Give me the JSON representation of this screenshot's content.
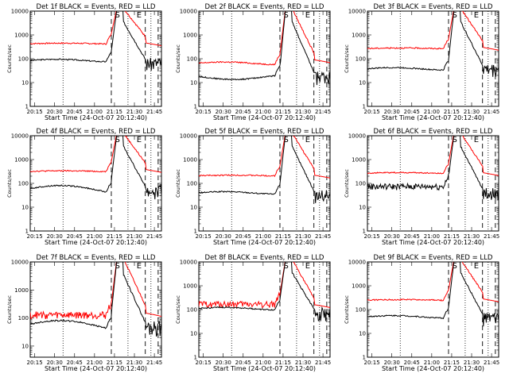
{
  "chart_data": [
    {
      "type": "line",
      "title": "Det 1f BLACK = Events, RED = LLD",
      "xlabel": "Start Time (24-Oct-07 20:12:40)",
      "ylabel": "Counts/sec",
      "x_ticks": [
        "20:15",
        "20:30",
        "20:45",
        "21:00",
        "21:15",
        "21:30",
        "21:45"
      ],
      "y_ticks": [
        "1",
        "10",
        "100",
        "1000",
        "10000"
      ],
      "ylim": [
        1,
        10000
      ],
      "y_scale": "log",
      "markers": [
        "S",
        "E"
      ],
      "series": [
        {
          "name": "Events",
          "color": "#000000",
          "base": 85,
          "spike_peak": 12000,
          "post_level": 90,
          "wobble": "mild"
        },
        {
          "name": "LLD",
          "color": "#ff0000",
          "base": 430,
          "spike_peak": 13000,
          "post_level": 460,
          "wobble": "smooth"
        }
      ]
    },
    {
      "type": "line",
      "title": "Det 2f BLACK = Events, RED = LLD",
      "xlabel": "Start Time (24-Oct-07 20:12:40)",
      "ylabel": "Counts/sec",
      "x_ticks": [
        "20:15",
        "20:30",
        "20:45",
        "21:00",
        "21:15",
        "21:30",
        "21:45"
      ],
      "y_ticks": [
        "1",
        "10",
        "100",
        "1000",
        "10000"
      ],
      "ylim": [
        1,
        10000
      ],
      "y_scale": "log",
      "markers": [
        "S",
        "E"
      ],
      "series": [
        {
          "name": "Events",
          "color": "#000000",
          "base": 18,
          "spike_peak": 12000,
          "post_level": 25,
          "wobble": "dip"
        },
        {
          "name": "LLD",
          "color": "#ff0000",
          "base": 65,
          "spike_peak": 13000,
          "post_level": 90,
          "wobble": "mild"
        }
      ]
    },
    {
      "type": "line",
      "title": "Det 3f BLACK = Events, RED = LLD",
      "xlabel": "Start Time (24-Oct-07 20:12:40)",
      "ylabel": "Counts/sec",
      "x_ticks": [
        "20:15",
        "20:30",
        "20:45",
        "21:00",
        "21:15",
        "21:30",
        "21:45"
      ],
      "y_ticks": [
        "1",
        "10",
        "100",
        "1000",
        "10000"
      ],
      "ylim": [
        1,
        10000
      ],
      "y_scale": "log",
      "markers": [
        "S",
        "E"
      ],
      "series": [
        {
          "name": "Events",
          "color": "#000000",
          "base": 38,
          "spike_peak": 12000,
          "post_level": 50,
          "wobble": "mild"
        },
        {
          "name": "LLD",
          "color": "#ff0000",
          "base": 270,
          "spike_peak": 13000,
          "post_level": 300,
          "wobble": "smooth"
        }
      ]
    },
    {
      "type": "line",
      "title": "Det 4f BLACK = Events, RED = LLD",
      "xlabel": "Start Time (24-Oct-07 20:12:40)",
      "ylabel": "Counts/sec",
      "x_ticks": [
        "20:15",
        "20:30",
        "20:45",
        "21:00",
        "21:15",
        "21:30",
        "21:45"
      ],
      "y_ticks": [
        "1",
        "10",
        "100",
        "1000",
        "10000"
      ],
      "ylim": [
        1,
        10000
      ],
      "y_scale": "log",
      "markers": [
        "S",
        "E"
      ],
      "series": [
        {
          "name": "Events",
          "color": "#000000",
          "base": 60,
          "spike_peak": 12000,
          "post_level": 70,
          "wobble": "hump"
        },
        {
          "name": "LLD",
          "color": "#ff0000",
          "base": 320,
          "spike_peak": 13000,
          "post_level": 380,
          "wobble": "smooth"
        }
      ]
    },
    {
      "type": "line",
      "title": "Det 5f BLACK = Events, RED = LLD",
      "xlabel": "Start Time (24-Oct-07 20:12:40)",
      "ylabel": "Counts/sec",
      "x_ticks": [
        "20:15",
        "20:30",
        "20:45",
        "21:00",
        "21:15",
        "21:30",
        "21:45"
      ],
      "y_ticks": [
        "1",
        "10",
        "100",
        "1000",
        "10000"
      ],
      "ylim": [
        1,
        10000
      ],
      "y_scale": "log",
      "markers": [
        "S",
        "E"
      ],
      "series": [
        {
          "name": "Events",
          "color": "#000000",
          "base": 40,
          "spike_peak": 12000,
          "post_level": 45,
          "wobble": "mild"
        },
        {
          "name": "LLD",
          "color": "#ff0000",
          "base": 210,
          "spike_peak": 13000,
          "post_level": 220,
          "wobble": "smooth"
        }
      ]
    },
    {
      "type": "line",
      "title": "Det 6f BLACK = Events, RED = LLD",
      "xlabel": "Start Time (24-Oct-07 20:12:40)",
      "ylabel": "Counts/sec",
      "x_ticks": [
        "20:15",
        "20:30",
        "20:45",
        "21:00",
        "21:15",
        "21:30",
        "21:45"
      ],
      "y_ticks": [
        "1",
        "10",
        "100",
        "1000",
        "10000"
      ],
      "ylim": [
        1,
        10000
      ],
      "y_scale": "log",
      "markers": [
        "S",
        "E"
      ],
      "series": [
        {
          "name": "Events",
          "color": "#000000",
          "base": 75,
          "spike_peak": 12000,
          "post_level": 55,
          "wobble": "noisy"
        },
        {
          "name": "LLD",
          "color": "#ff0000",
          "base": 270,
          "spike_peak": 13000,
          "post_level": 280,
          "wobble": "smooth"
        }
      ]
    },
    {
      "type": "line",
      "title": "Det 7f BLACK = Events, RED = LLD",
      "xlabel": "Start Time (24-Oct-07 20:12:40)",
      "ylabel": "Counts/sec",
      "x_ticks": [
        "20:15",
        "20:30",
        "20:45",
        "21:00",
        "21:15",
        "21:30",
        "21:45"
      ],
      "y_ticks": [
        "10",
        "100",
        "1000",
        "10000"
      ],
      "ylim": [
        4,
        10000
      ],
      "y_scale": "log",
      "markers": [
        "S",
        "E"
      ],
      "series": [
        {
          "name": "Events",
          "color": "#000000",
          "base": 60,
          "spike_peak": 12000,
          "post_level": 65,
          "wobble": "hump"
        },
        {
          "name": "LLD",
          "color": "#ff0000",
          "base": 130,
          "spike_peak": 13000,
          "post_level": 150,
          "wobble": "noisy"
        }
      ]
    },
    {
      "type": "line",
      "title": "Det 8f BLACK = Events, RED = LLD",
      "xlabel": "Start Time (24-Oct-07 20:12:40)",
      "ylabel": "Counts/sec",
      "x_ticks": [
        "20:15",
        "20:30",
        "20:45",
        "21:00",
        "21:15",
        "21:30",
        "21:45"
      ],
      "y_ticks": [
        "1",
        "10",
        "100",
        "1000",
        "10000"
      ],
      "ylim": [
        1,
        10000
      ],
      "y_scale": "log",
      "markers": [
        "S",
        "E"
      ],
      "series": [
        {
          "name": "Events",
          "color": "#000000",
          "base": 110,
          "spike_peak": 12000,
          "post_level": 100,
          "wobble": "mild"
        },
        {
          "name": "LLD",
          "color": "#ff0000",
          "base": 170,
          "spike_peak": 13000,
          "post_level": 160,
          "wobble": "noisy"
        }
      ]
    },
    {
      "type": "line",
      "title": "Det 9f BLACK = Events, RED = LLD",
      "xlabel": "Start Time (24-Oct-07 20:12:40)",
      "ylabel": "Counts/sec",
      "x_ticks": [
        "20:15",
        "20:30",
        "20:45",
        "21:00",
        "21:15",
        "21:30",
        "21:45"
      ],
      "y_ticks": [
        "1",
        "10",
        "100",
        "1000",
        "10000"
      ],
      "ylim": [
        1,
        10000
      ],
      "y_scale": "log",
      "markers": [
        "S",
        "E"
      ],
      "series": [
        {
          "name": "Events",
          "color": "#000000",
          "base": 50,
          "spike_peak": 12000,
          "post_level": 60,
          "wobble": "mild"
        },
        {
          "name": "LLD",
          "color": "#ff0000",
          "base": 250,
          "spike_peak": 13000,
          "post_level": 280,
          "wobble": "smooth"
        }
      ]
    }
  ]
}
